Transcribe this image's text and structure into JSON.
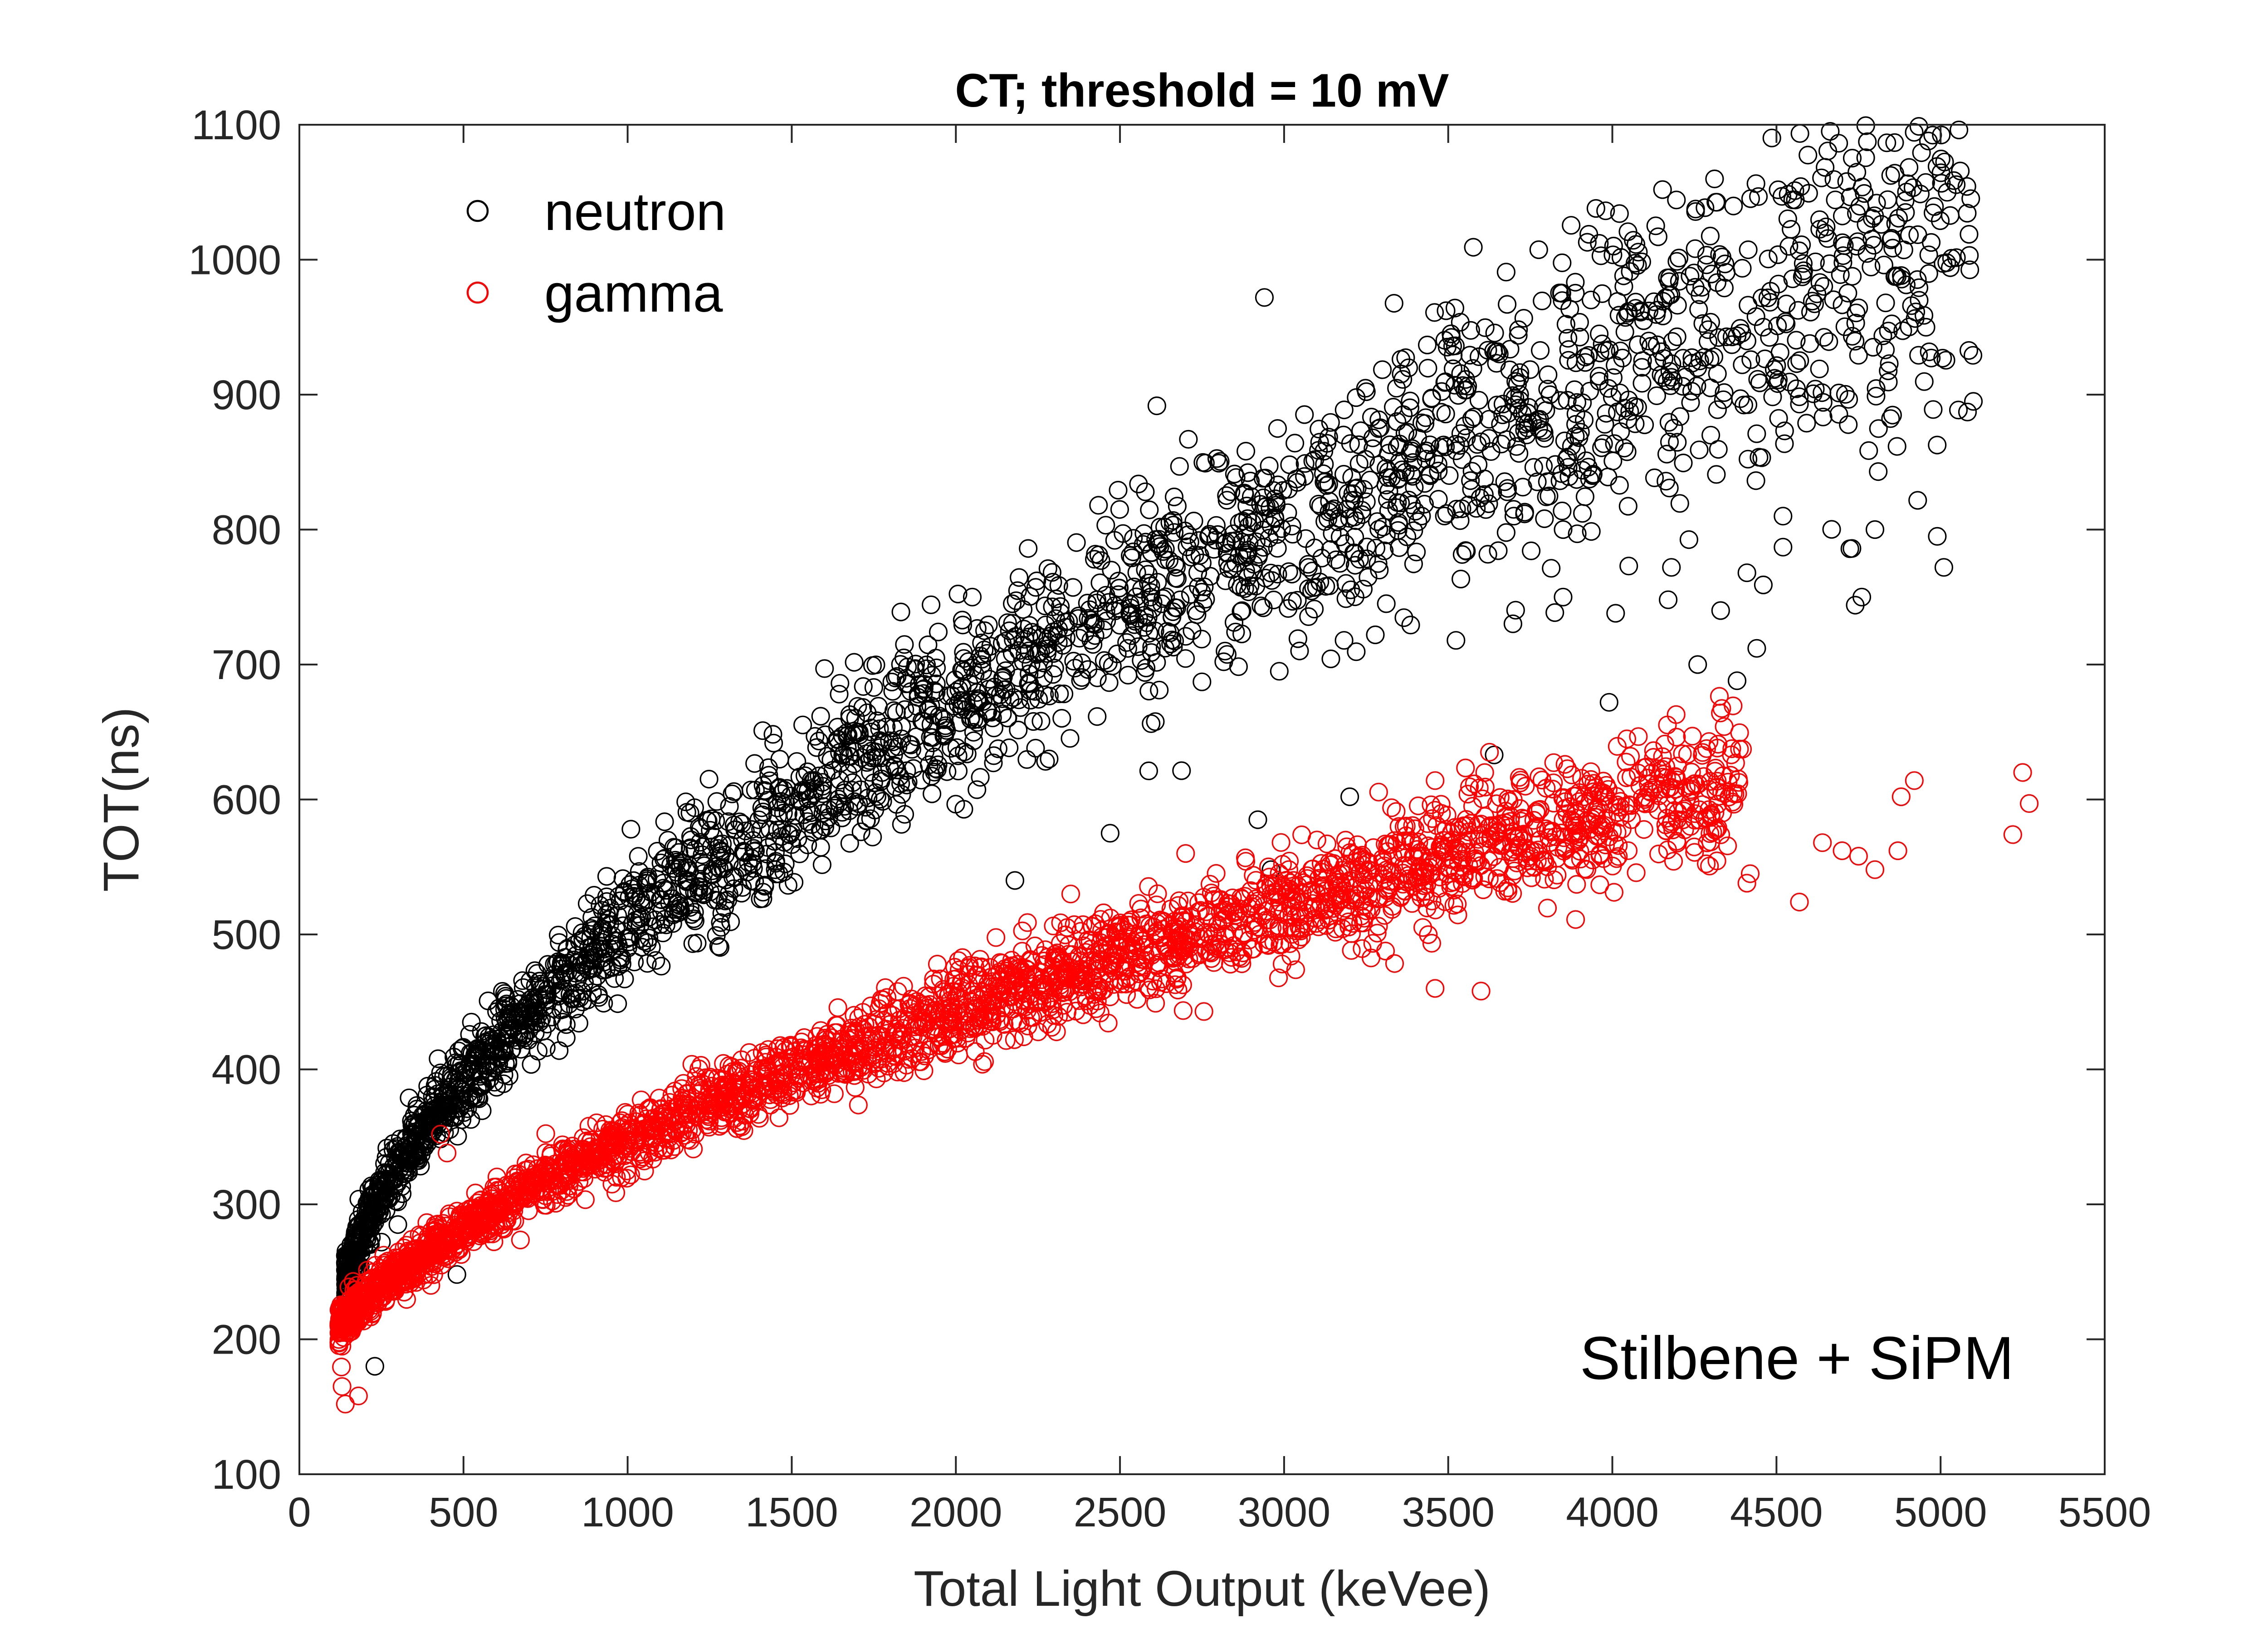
{
  "chart_data": {
    "type": "scatter",
    "title": "CT; threshold = 10 mV",
    "xlabel": "Total Light Output (keVee)",
    "ylabel": "TOT(ns)",
    "xlim": [
      0,
      5500
    ],
    "ylim": [
      100,
      1100
    ],
    "xticks": [
      0,
      500,
      1000,
      1500,
      2000,
      2500,
      3000,
      3500,
      4000,
      4500,
      5000,
      5500
    ],
    "yticks": [
      100,
      200,
      300,
      400,
      500,
      600,
      700,
      800,
      900,
      1000,
      1100
    ],
    "grid": false,
    "marker": "open-circle",
    "legend_position": "top-left",
    "annotation": "Stilbene + SiPM",
    "series": [
      {
        "name": "neutron",
        "color": "#000000",
        "trend": {
          "a": 180,
          "k": 0.28,
          "exp": 0.5,
          "x0": 140,
          "xmax": 5100,
          "spread_base": 8,
          "spread_slope": 0.013
        },
        "points": [
          {
            "x": 3950,
            "y": 1038
          },
          {
            "x": 5020,
            "y": 1050
          },
          {
            "x": 2940,
            "y": 972
          },
          {
            "x": 3960,
            "y": 945
          },
          {
            "x": 4460,
            "y": 950
          },
          {
            "x": 4260,
            "y": 920
          },
          {
            "x": 3960,
            "y": 910
          },
          {
            "x": 3520,
            "y": 907
          },
          {
            "x": 4390,
            "y": 897
          },
          {
            "x": 4000,
            "y": 898
          },
          {
            "x": 4570,
            "y": 893
          },
          {
            "x": 5100,
            "y": 895
          },
          {
            "x": 4300,
            "y": 870
          },
          {
            "x": 3600,
            "y": 865
          },
          {
            "x": 3390,
            "y": 860
          },
          {
            "x": 3860,
            "y": 852
          },
          {
            "x": 3920,
            "y": 851
          },
          {
            "x": 4810,
            "y": 843
          },
          {
            "x": 3940,
            "y": 840
          },
          {
            "x": 3040,
            "y": 835
          },
          {
            "x": 3310,
            "y": 833
          },
          {
            "x": 3680,
            "y": 828
          },
          {
            "x": 3610,
            "y": 826
          },
          {
            "x": 4520,
            "y": 810
          },
          {
            "x": 2940,
            "y": 808
          },
          {
            "x": 2960,
            "y": 803
          },
          {
            "x": 4800,
            "y": 800
          },
          {
            "x": 4990,
            "y": 795
          },
          {
            "x": 2770,
            "y": 795
          },
          {
            "x": 4520,
            "y": 787
          },
          {
            "x": 4730,
            "y": 786
          },
          {
            "x": 5010,
            "y": 772
          },
          {
            "x": 4410,
            "y": 768
          },
          {
            "x": 4460,
            "y": 759
          },
          {
            "x": 4760,
            "y": 750
          },
          {
            "x": 4740,
            "y": 744
          },
          {
            "x": 2050,
            "y": 750
          },
          {
            "x": 2430,
            "y": 748
          },
          {
            "x": 2560,
            "y": 746
          },
          {
            "x": 4440,
            "y": 712
          },
          {
            "x": 4260,
            "y": 700
          },
          {
            "x": 4380,
            "y": 688
          },
          {
            "x": 3990,
            "y": 672
          },
          {
            "x": 1600,
            "y": 697
          },
          {
            "x": 1010,
            "y": 578
          },
          {
            "x": 1190,
            "y": 590
          },
          {
            "x": 2920,
            "y": 585
          },
          {
            "x": 3640,
            "y": 633
          },
          {
            "x": 3200,
            "y": 602
          },
          {
            "x": 2470,
            "y": 575
          },
          {
            "x": 2960,
            "y": 548
          },
          {
            "x": 2180,
            "y": 540
          },
          {
            "x": 250,
            "y": 272
          },
          {
            "x": 300,
            "y": 285
          },
          {
            "x": 480,
            "y": 248
          },
          {
            "x": 230,
            "y": 180
          },
          {
            "x": 1430,
            "y": 618
          },
          {
            "x": 1700,
            "y": 650
          },
          {
            "x": 1750,
            "y": 683
          },
          {
            "x": 3170,
            "y": 775
          },
          {
            "x": 3230,
            "y": 778
          },
          {
            "x": 3290,
            "y": 770
          },
          {
            "x": 3700,
            "y": 810
          },
          {
            "x": 3850,
            "y": 800
          },
          {
            "x": 4050,
            "y": 773
          },
          {
            "x": 4180,
            "y": 772
          },
          {
            "x": 3850,
            "y": 750
          },
          {
            "x": 4010,
            "y": 738
          },
          {
            "x": 4170,
            "y": 748
          },
          {
            "x": 4330,
            "y": 740
          },
          {
            "x": 2820,
            "y": 710
          }
        ]
      },
      {
        "name": "gamma",
        "color": "#ff0000",
        "trend": {
          "a": 140,
          "k": 2.3,
          "exp": 0.5,
          "x0": 120,
          "xmax": 4400,
          "spread_base": 7,
          "spread_slope": 0.0045
        },
        "points": [
          {
            "x": 5250,
            "y": 620
          },
          {
            "x": 5270,
            "y": 597
          },
          {
            "x": 5220,
            "y": 574
          },
          {
            "x": 4920,
            "y": 614
          },
          {
            "x": 4880,
            "y": 602
          },
          {
            "x": 4360,
            "y": 618
          },
          {
            "x": 4240,
            "y": 610
          },
          {
            "x": 3460,
            "y": 614
          },
          {
            "x": 3560,
            "y": 604
          },
          {
            "x": 4640,
            "y": 568
          },
          {
            "x": 4700,
            "y": 562
          },
          {
            "x": 4750,
            "y": 558
          },
          {
            "x": 4800,
            "y": 548
          },
          {
            "x": 4870,
            "y": 562
          },
          {
            "x": 4570,
            "y": 524
          },
          {
            "x": 2700,
            "y": 560
          },
          {
            "x": 2350,
            "y": 530
          },
          {
            "x": 2450,
            "y": 516
          },
          {
            "x": 4420,
            "y": 545
          },
          {
            "x": 4410,
            "y": 538
          },
          {
            "x": 430,
            "y": 352
          },
          {
            "x": 450,
            "y": 338
          },
          {
            "x": 140,
            "y": 152
          },
          {
            "x": 130,
            "y": 165
          },
          {
            "x": 180,
            "y": 158
          },
          {
            "x": 3850,
            "y": 585
          },
          {
            "x": 3350,
            "y": 580
          },
          {
            "x": 3100,
            "y": 570
          },
          {
            "x": 3460,
            "y": 460
          },
          {
            "x": 3600,
            "y": 458
          }
        ]
      }
    ]
  }
}
